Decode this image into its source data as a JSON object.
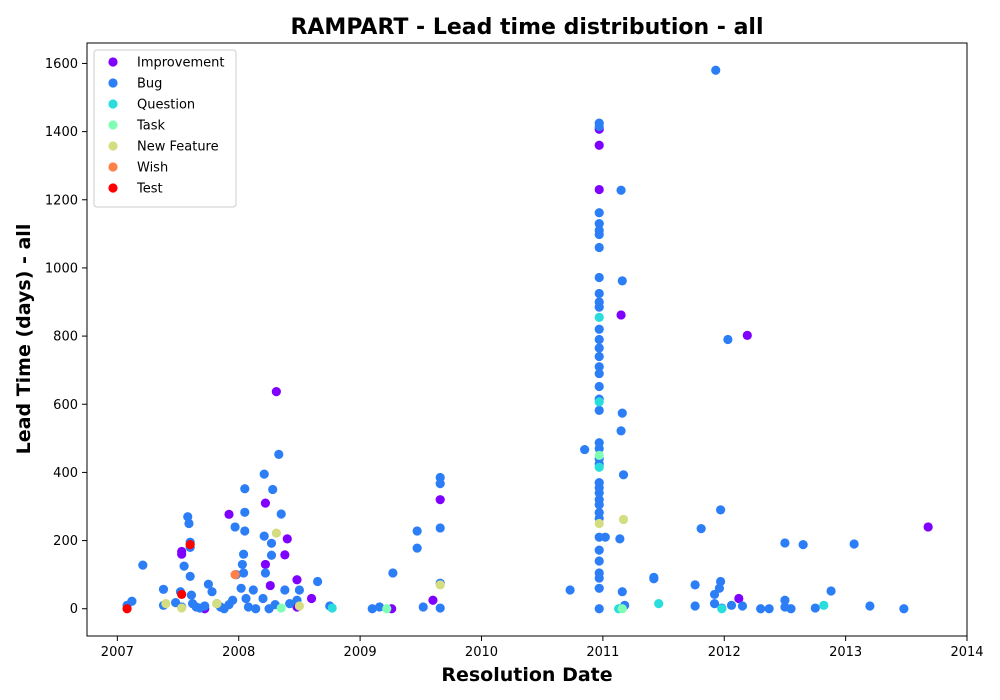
{
  "chart_data": {
    "type": "scatter",
    "title": "RAMPART - Lead time distribution - all",
    "xlabel": "Resolution Date",
    "ylabel": "Lead Time (days) - all",
    "xlim": [
      2006.75,
      2014.0
    ],
    "ylim": [
      -80,
      1660
    ],
    "xticks": [
      "2007",
      "2008",
      "2009",
      "2010",
      "2011",
      "2012",
      "2013",
      "2014"
    ],
    "yticks": [
      "0",
      "200",
      "400",
      "600",
      "800",
      "1000",
      "1200",
      "1400",
      "1600"
    ],
    "legend_position": "upper-left",
    "grid": false,
    "series": [
      {
        "name": "Improvement",
        "color": "#8000ff",
        "points": [
          [
            2007.53,
            160
          ],
          [
            2007.53,
            168
          ],
          [
            2007.92,
            277
          ],
          [
            2008.22,
            310
          ],
          [
            2008.22,
            130
          ],
          [
            2008.26,
            68
          ],
          [
            2008.31,
            637
          ],
          [
            2008.38,
            158
          ],
          [
            2008.4,
            205
          ],
          [
            2008.48,
            85
          ],
          [
            2008.6,
            30
          ],
          [
            2008.48,
            5
          ],
          [
            2009.26,
            0
          ],
          [
            2009.6,
            25
          ],
          [
            2009.66,
            320
          ],
          [
            2010.97,
            1407
          ],
          [
            2010.97,
            1360
          ],
          [
            2010.97,
            1230
          ],
          [
            2011.15,
            862
          ],
          [
            2012.19,
            802
          ],
          [
            2012.12,
            30
          ],
          [
            2013.68,
            240
          ],
          [
            2007.72,
            0
          ]
        ]
      },
      {
        "name": "Bug",
        "color": "#2c7ef7",
        "points": [
          [
            2007.08,
            10
          ],
          [
            2007.12,
            22
          ],
          [
            2007.21,
            128
          ],
          [
            2007.38,
            57
          ],
          [
            2007.38,
            10
          ],
          [
            2007.48,
            18
          ],
          [
            2007.52,
            50
          ],
          [
            2007.53,
            5
          ],
          [
            2007.55,
            125
          ],
          [
            2007.58,
            270
          ],
          [
            2007.59,
            250
          ],
          [
            2007.6,
            195
          ],
          [
            2007.6,
            180
          ],
          [
            2007.6,
            95
          ],
          [
            2007.61,
            40
          ],
          [
            2007.62,
            15
          ],
          [
            2007.65,
            5
          ],
          [
            2007.68,
            2
          ],
          [
            2007.72,
            8
          ],
          [
            2007.75,
            72
          ],
          [
            2007.78,
            50
          ],
          [
            2007.82,
            15
          ],
          [
            2007.85,
            5
          ],
          [
            2007.88,
            0
          ],
          [
            2007.92,
            12
          ],
          [
            2007.95,
            25
          ],
          [
            2007.97,
            240
          ],
          [
            2007.98,
            100
          ],
          [
            2008.02,
            60
          ],
          [
            2008.03,
            130
          ],
          [
            2008.04,
            105
          ],
          [
            2008.04,
            160
          ],
          [
            2008.05,
            352
          ],
          [
            2008.05,
            283
          ],
          [
            2008.05,
            228
          ],
          [
            2008.06,
            30
          ],
          [
            2008.08,
            5
          ],
          [
            2008.12,
            55
          ],
          [
            2008.14,
            0
          ],
          [
            2008.2,
            30
          ],
          [
            2008.21,
            395
          ],
          [
            2008.21,
            213
          ],
          [
            2008.22,
            105
          ],
          [
            2008.25,
            0
          ],
          [
            2008.27,
            192
          ],
          [
            2008.27,
            157
          ],
          [
            2008.28,
            350
          ],
          [
            2008.3,
            12
          ],
          [
            2008.33,
            453
          ],
          [
            2008.35,
            278
          ],
          [
            2008.38,
            55
          ],
          [
            2008.42,
            15
          ],
          [
            2008.48,
            25
          ],
          [
            2008.5,
            55
          ],
          [
            2008.65,
            80
          ],
          [
            2008.75,
            8
          ],
          [
            2009.1,
            0
          ],
          [
            2009.16,
            5
          ],
          [
            2009.27,
            105
          ],
          [
            2009.47,
            228
          ],
          [
            2009.47,
            178
          ],
          [
            2009.52,
            5
          ],
          [
            2009.66,
            385
          ],
          [
            2009.66,
            367
          ],
          [
            2009.66,
            237
          ],
          [
            2009.66,
            75
          ],
          [
            2009.66,
            2
          ],
          [
            2010.73,
            55
          ],
          [
            2010.85,
            467
          ],
          [
            2010.97,
            1425
          ],
          [
            2010.97,
            1415
          ],
          [
            2010.97,
            1162
          ],
          [
            2010.97,
            1130
          ],
          [
            2010.97,
            1110
          ],
          [
            2010.97,
            1098
          ],
          [
            2010.97,
            1060
          ],
          [
            2010.97,
            972
          ],
          [
            2010.97,
            925
          ],
          [
            2010.97,
            900
          ],
          [
            2010.97,
            885
          ],
          [
            2010.97,
            820
          ],
          [
            2010.97,
            790
          ],
          [
            2010.97,
            765
          ],
          [
            2010.97,
            740
          ],
          [
            2010.97,
            710
          ],
          [
            2010.97,
            690
          ],
          [
            2010.97,
            652
          ],
          [
            2010.97,
            615
          ],
          [
            2010.97,
            582
          ],
          [
            2010.97,
            487
          ],
          [
            2010.97,
            470
          ],
          [
            2010.97,
            440
          ],
          [
            2010.97,
            425
          ],
          [
            2010.97,
            370
          ],
          [
            2010.97,
            355
          ],
          [
            2010.97,
            340
          ],
          [
            2010.97,
            320
          ],
          [
            2010.97,
            305
          ],
          [
            2010.97,
            282
          ],
          [
            2010.97,
            265
          ],
          [
            2010.97,
            210
          ],
          [
            2010.97,
            172
          ],
          [
            2010.97,
            140
          ],
          [
            2010.97,
            105
          ],
          [
            2010.97,
            90
          ],
          [
            2010.97,
            60
          ],
          [
            2010.97,
            0
          ],
          [
            2011.02,
            210
          ],
          [
            2011.14,
            205
          ],
          [
            2011.15,
            1228
          ],
          [
            2011.16,
            962
          ],
          [
            2011.16,
            574
          ],
          [
            2011.15,
            522
          ],
          [
            2011.17,
            393
          ],
          [
            2011.16,
            50
          ],
          [
            2011.18,
            10
          ],
          [
            2011.42,
            92
          ],
          [
            2011.42,
            88
          ],
          [
            2011.76,
            70
          ],
          [
            2011.76,
            8
          ],
          [
            2011.81,
            235
          ],
          [
            2011.93,
            1580
          ],
          [
            2011.92,
            42
          ],
          [
            2011.92,
            15
          ],
          [
            2011.97,
            290
          ],
          [
            2011.97,
            80
          ],
          [
            2011.96,
            60
          ],
          [
            2011.98,
            2
          ],
          [
            2012.03,
            790
          ],
          [
            2012.06,
            10
          ],
          [
            2012.15,
            8
          ],
          [
            2012.3,
            0
          ],
          [
            2012.37,
            0
          ],
          [
            2012.5,
            193
          ],
          [
            2012.5,
            25
          ],
          [
            2012.5,
            5
          ],
          [
            2012.55,
            0
          ],
          [
            2012.65,
            188
          ],
          [
            2012.75,
            2
          ],
          [
            2012.88,
            52
          ],
          [
            2013.07,
            190
          ],
          [
            2013.2,
            8
          ],
          [
            2013.48,
            0
          ]
        ]
      },
      {
        "name": "Question",
        "color": "#2adddd",
        "points": [
          [
            2008.77,
            2
          ],
          [
            2010.97,
            855
          ],
          [
            2010.97,
            607
          ],
          [
            2010.97,
            415
          ],
          [
            2011.46,
            15
          ],
          [
            2011.98,
            0
          ],
          [
            2012.82,
            10
          ],
          [
            2011.13,
            0
          ]
        ]
      },
      {
        "name": "Task",
        "color": "#80ffb4",
        "points": [
          [
            2008.35,
            2
          ],
          [
            2009.22,
            0
          ],
          [
            2010.97,
            450
          ],
          [
            2011.16,
            0
          ]
        ]
      },
      {
        "name": "New Feature",
        "color": "#d4dd80",
        "points": [
          [
            2007.4,
            15
          ],
          [
            2007.53,
            2
          ],
          [
            2007.82,
            15
          ],
          [
            2008.31,
            222
          ],
          [
            2008.5,
            8
          ],
          [
            2009.66,
            70
          ],
          [
            2010.97,
            250
          ],
          [
            2011.17,
            262
          ]
        ]
      },
      {
        "name": "Wish",
        "color": "#ff8048",
        "points": [
          [
            2007.97,
            100
          ]
        ]
      },
      {
        "name": "Test",
        "color": "#ff0000",
        "points": [
          [
            2007.08,
            0
          ],
          [
            2007.53,
            42
          ],
          [
            2007.6,
            188
          ]
        ]
      }
    ]
  }
}
